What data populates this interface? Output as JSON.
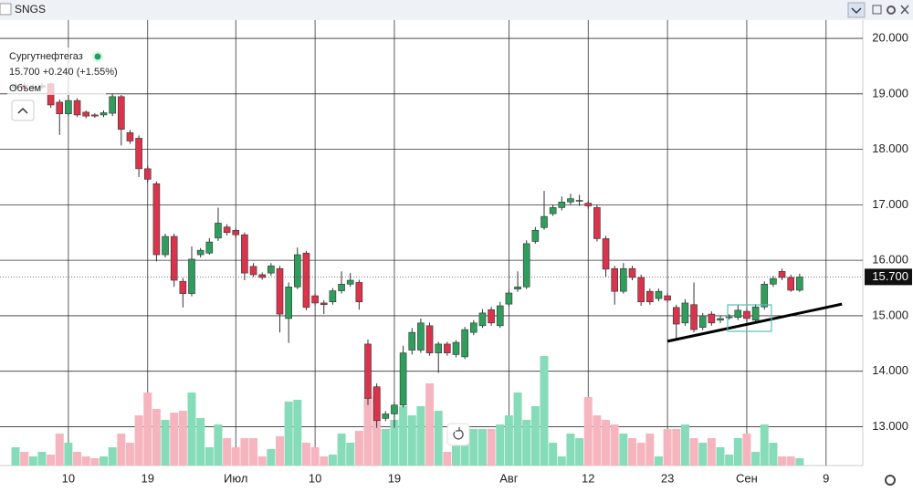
{
  "chart_data": {
    "type": "candlestick",
    "title": "SNGS",
    "subtitle": "Сургутнефтегаз",
    "quote": "15.700 +0.240 (+1.55%)",
    "volume_label": "Объем",
    "last_price": {
      "value": 15.7,
      "label": "15.700"
    },
    "up_color": "#2f9e5c",
    "down_color": "#d9344b",
    "volume_up_color": "#86dcb8",
    "volume_down_color": "#f6b5be",
    "ylim": [
      12.3,
      20.33
    ],
    "yticks": [
      {
        "value": 13,
        "label": "13.000"
      },
      {
        "value": 14,
        "label": "14.000"
      },
      {
        "value": 15,
        "label": "15.000"
      },
      {
        "value": 16,
        "label": "16.000"
      },
      {
        "value": 17,
        "label": "17.000"
      },
      {
        "value": 18,
        "label": "18.000"
      },
      {
        "value": 19,
        "label": "19.000"
      },
      {
        "value": 20,
        "label": "20.000"
      }
    ],
    "volume_lim": [
      0,
      125
    ],
    "grid": true,
    "trendline": {
      "x": [
        74,
        93.8
      ],
      "y": [
        14.54,
        15.21
      ],
      "color": "#000000"
    },
    "categories": [
      null,
      null,
      null,
      null,
      null,
      null,
      "10",
      null,
      null,
      null,
      null,
      null,
      null,
      null,
      null,
      "19",
      null,
      null,
      null,
      null,
      null,
      null,
      null,
      null,
      null,
      "Июл",
      null,
      null,
      null,
      null,
      null,
      null,
      null,
      null,
      "10",
      null,
      null,
      null,
      null,
      null,
      null,
      null,
      null,
      "19",
      null,
      null,
      null,
      null,
      null,
      null,
      null,
      null,
      null,
      null,
      null,
      null,
      "Авг",
      null,
      null,
      null,
      null,
      null,
      null,
      null,
      null,
      "12",
      null,
      null,
      null,
      null,
      null,
      null,
      null,
      null,
      "23",
      null,
      null,
      null,
      null,
      null,
      null,
      null,
      null,
      "Сен",
      null,
      null,
      null,
      null,
      null,
      null,
      null,
      null,
      "9"
    ],
    "open": [
      19.1,
      19.15,
      19.1,
      19.12,
      19.18,
      18.85,
      18.64,
      18.88,
      18.67,
      18.62,
      18.62,
      18.65,
      18.95,
      18.3,
      18.2,
      17.65,
      17.38,
      16.1,
      16.43,
      15.62,
      15.4,
      16.1,
      16.13,
      16.4,
      16.6,
      16.54,
      16.46,
      15.89,
      15.74,
      15.77,
      15.85,
      14.95,
      15.52,
      16.13,
      15.36,
      15.23,
      15.25,
      15.45,
      15.57,
      15.6,
      14.49,
      13.72,
      13.15,
      13.23,
      13.39,
      14.38,
      14.38,
      14.82,
      14.33,
      14.49,
      14.3,
      14.26,
      14.7,
      14.82,
      15.11,
      14.82,
      15.21,
      15.48,
      15.52,
      16.34,
      16.59,
      16.84,
      16.95,
      17.05,
      17.08,
      17.03,
      16.95,
      16.39,
      15.85,
      15.44,
      15.85,
      15.69,
      15.44,
      15.31,
      15.36,
      15.15,
      14.87,
      15.2,
      14.79,
      15.03,
      14.92,
      14.97,
      14.97,
      15.08,
      14.92,
      15.16,
      15.57,
      15.8,
      15.69,
      15.46,
      null,
      null,
      null
    ],
    "high": [
      19.2,
      19.2,
      19.18,
      19.2,
      19.2,
      18.9,
      19.05,
      18.92,
      18.7,
      18.65,
      18.7,
      19.0,
      18.98,
      18.35,
      18.25,
      17.7,
      17.42,
      16.48,
      16.48,
      15.68,
      16.25,
      16.22,
      16.4,
      16.95,
      16.65,
      16.58,
      16.5,
      15.95,
      15.78,
      15.95,
      15.9,
      15.6,
      16.23,
      16.17,
      15.4,
      15.28,
      15.5,
      15.8,
      15.77,
      15.65,
      14.57,
      13.78,
      13.28,
      13.45,
      14.46,
      14.78,
      14.95,
      14.88,
      14.53,
      14.53,
      14.56,
      14.8,
      14.92,
      15.12,
      15.16,
      15.25,
      15.47,
      15.8,
      16.36,
      16.6,
      17.25,
      17.0,
      17.15,
      17.2,
      17.18,
      17.08,
      17.0,
      16.44,
      15.9,
      15.95,
      15.9,
      15.74,
      15.49,
      15.49,
      15.41,
      15.2,
      15.3,
      15.6,
      15.05,
      15.08,
      15.0,
      15.03,
      15.2,
      15.13,
      15.21,
      15.62,
      15.72,
      15.85,
      15.74,
      15.76,
      null,
      null,
      null
    ],
    "low": [
      19.05,
      19.05,
      19.05,
      19.08,
      18.75,
      18.26,
      18.6,
      18.58,
      18.56,
      18.57,
      18.58,
      18.6,
      18.07,
      18.1,
      17.5,
      17.4,
      15.98,
      16.05,
      15.52,
      15.15,
      15.35,
      16.05,
      16.1,
      16.35,
      16.45,
      16.4,
      15.64,
      15.7,
      15.65,
      15.72,
      14.7,
      14.51,
      15.48,
      15.1,
      15.18,
      15.03,
      15.2,
      15.4,
      15.52,
      15.11,
      13.39,
      12.98,
      13.1,
      12.98,
      13.35,
      14.3,
      14.33,
      14.28,
      13.97,
      14.28,
      14.25,
      14.22,
      14.65,
      14.78,
      14.82,
      14.78,
      15.16,
      15.43,
      15.48,
      16.3,
      16.55,
      16.8,
      16.9,
      17.0,
      16.98,
      16.93,
      16.34,
      15.7,
      15.2,
      15.4,
      15.64,
      15.18,
      15.2,
      15.26,
      15.23,
      14.58,
      14.82,
      14.7,
      14.74,
      14.82,
      14.87,
      14.93,
      14.92,
      14.85,
      14.87,
      15.11,
      15.52,
      15.64,
      15.43,
      15.43,
      null,
      null,
      null
    ],
    "close": [
      19.15,
      19.1,
      19.12,
      19.15,
      18.8,
      18.64,
      18.88,
      18.62,
      18.6,
      18.6,
      18.66,
      18.95,
      18.36,
      18.15,
      17.65,
      17.46,
      16.1,
      16.43,
      15.64,
      15.4,
      16.02,
      16.18,
      16.33,
      16.67,
      16.5,
      16.46,
      15.77,
      15.74,
      15.69,
      15.9,
      15.03,
      15.52,
      16.1,
      15.15,
      15.23,
      15.2,
      15.45,
      15.57,
      15.64,
      15.25,
      13.51,
      13.11,
      13.23,
      13.39,
      14.33,
      14.7,
      14.87,
      14.33,
      14.49,
      14.33,
      14.52,
      14.75,
      14.87,
      15.05,
      14.87,
      15.18,
      15.41,
      15.52,
      16.3,
      16.54,
      16.79,
      16.95,
      17.05,
      17.11,
      17.08,
      16.98,
      16.39,
      15.84,
      15.44,
      15.85,
      15.69,
      15.25,
      15.25,
      15.44,
      15.28,
      14.85,
      15.23,
      14.75,
      15.0,
      14.87,
      14.95,
      14.98,
      15.1,
      14.95,
      15.16,
      15.57,
      15.67,
      15.69,
      15.46,
      15.7,
      null,
      null,
      null
    ],
    "volume": [
      20,
      15,
      10,
      15,
      12,
      35,
      25,
      15,
      10,
      8,
      10,
      20,
      35,
      25,
      55,
      80,
      62,
      50,
      58,
      60,
      80,
      52,
      20,
      45,
      30,
      20,
      30,
      30,
      10,
      18,
      32,
      70,
      72,
      25,
      20,
      10,
      12,
      35,
      25,
      38,
      75,
      85,
      40,
      50,
      65,
      55,
      65,
      90,
      60,
      15,
      45,
      30,
      40,
      40,
      40,
      45,
      55,
      80,
      50,
      65,
      120,
      25,
      10,
      35,
      30,
      75,
      55,
      50,
      45,
      35,
      30,
      25,
      35,
      10,
      40,
      40,
      45,
      30,
      25,
      30,
      20,
      12,
      30,
      35,
      15,
      45,
      25,
      10,
      10,
      8,
      null,
      null,
      null
    ]
  }
}
